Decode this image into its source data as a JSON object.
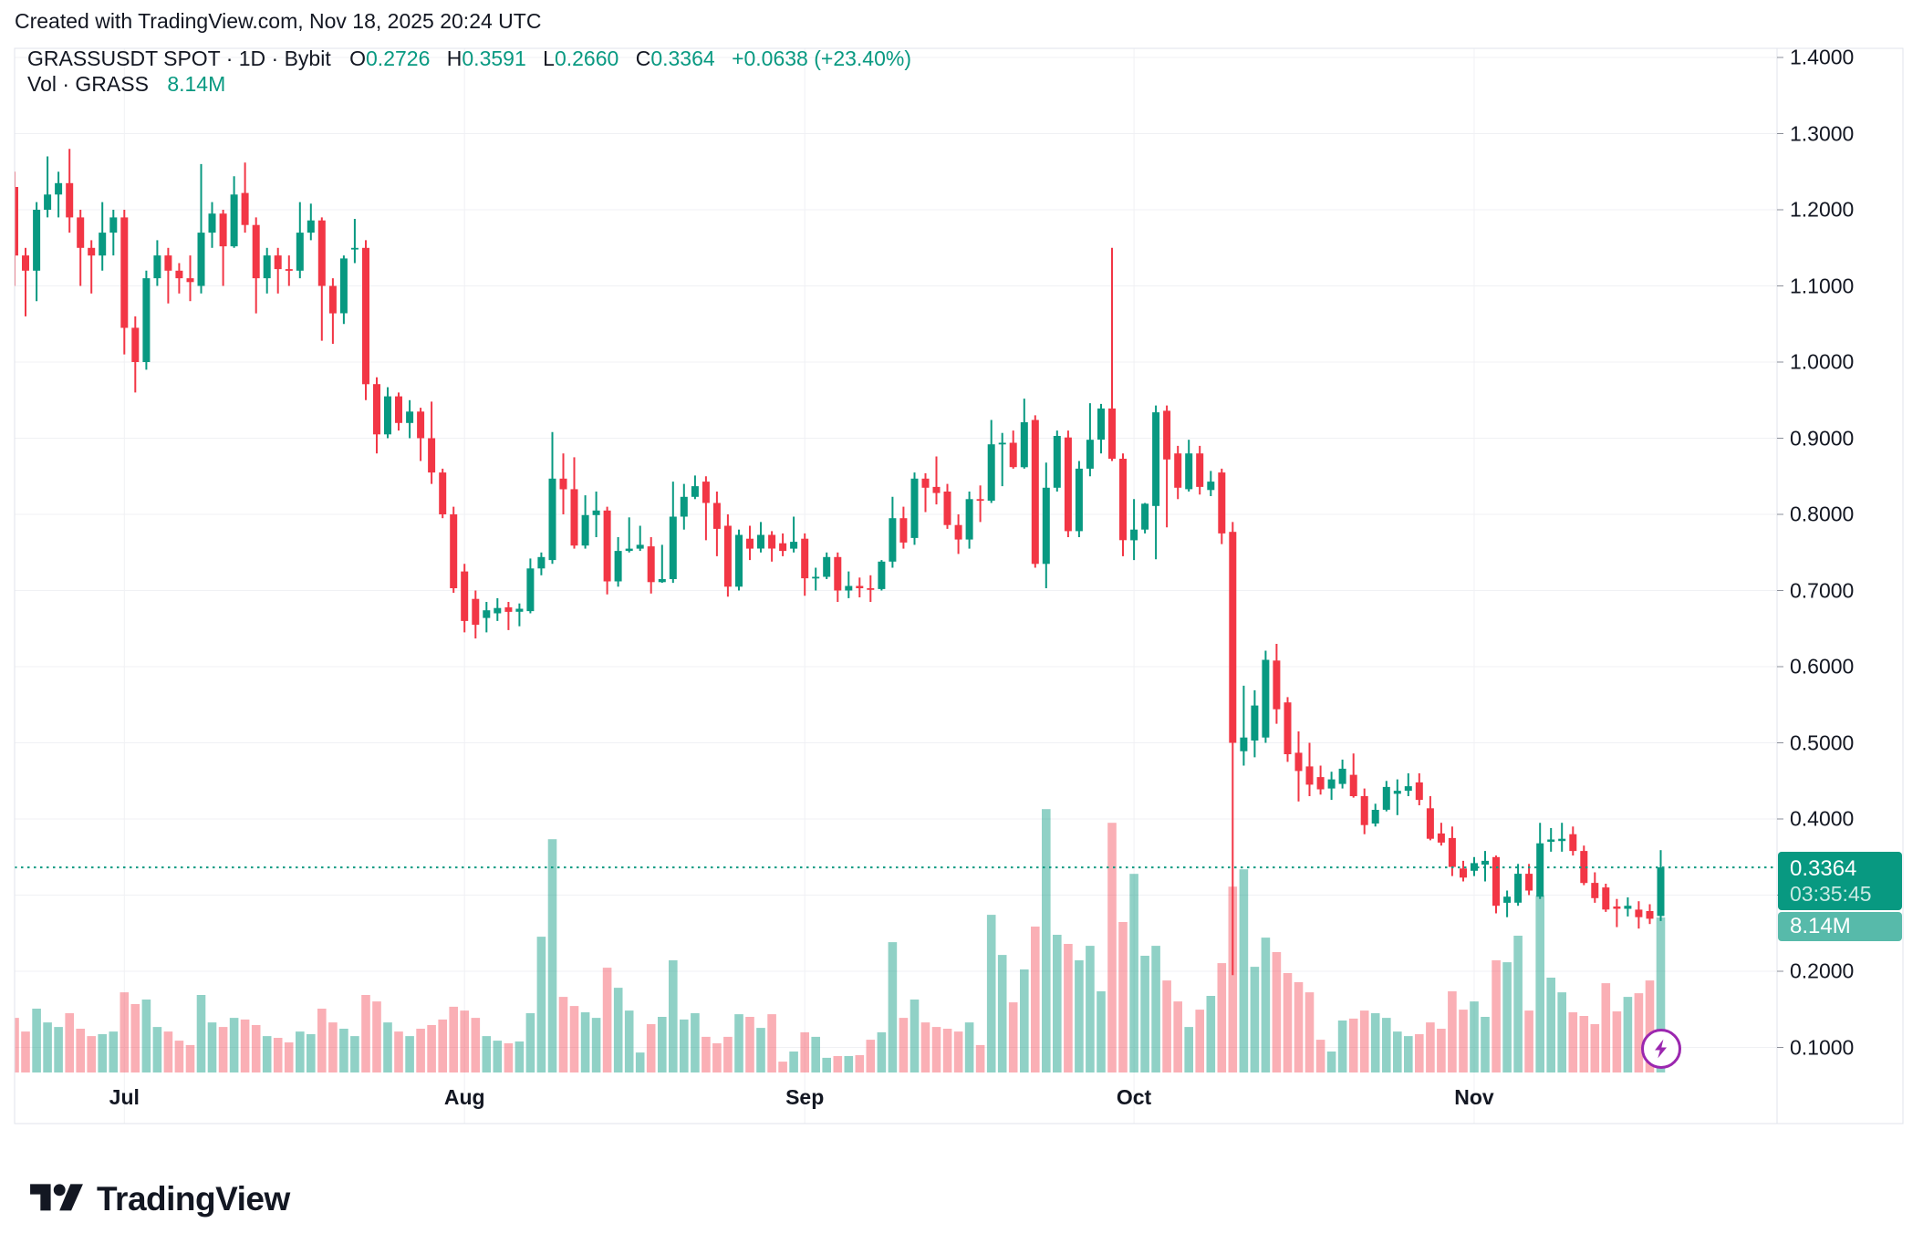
{
  "attribution": "Created with TradingView.com, Nov 18, 2025 20:24 UTC",
  "legend": {
    "symbol_title": "GRASSUSDT SPOT · 1D · Bybit",
    "ohlc": [
      {
        "label": "O",
        "value": "0.2726"
      },
      {
        "label": "H",
        "value": "0.3591"
      },
      {
        "label": "L",
        "value": "0.2660"
      },
      {
        "label": "C",
        "value": "0.3364"
      }
    ],
    "change": "+0.0638 (+23.40%)",
    "volume_label": "Vol · GRASS",
    "volume_value": "8.14M"
  },
  "price_scale": {
    "labels": [
      "1.4000",
      "1.3000",
      "1.2000",
      "1.1000",
      "1.0000",
      "0.9000",
      "0.8000",
      "0.7000",
      "0.6000",
      "0.5000",
      "0.4000",
      "0.3000",
      "0.2000",
      "0.1000"
    ],
    "badge_price": "0.3364",
    "badge_countdown": "03:35:45",
    "badge_volume": "8.14M"
  },
  "footer": {
    "brand": "TradingView"
  },
  "colors": {
    "up": "#089981",
    "down": "#f23645",
    "vol_up": "rgba(8,153,129,0.45)",
    "vol_down": "rgba(242,54,69,0.40)",
    "grid": "#f0f1f4",
    "border": "#e0e3eb",
    "tick": "#8a8e98",
    "price_line": "#089981",
    "marker_ring": "#9b27af"
  },
  "chart_data": {
    "type": "candlestick_with_volume",
    "symbol": "GRASSUSDT",
    "exchange": "Bybit",
    "interval": "1D",
    "start_date": "2025-06-21",
    "end_date": "2025-11-18",
    "ylim": [
      0.05,
      1.45
    ],
    "y_ticks": [
      0.1,
      0.2,
      0.3,
      0.4,
      0.5,
      0.6,
      0.7,
      0.8,
      0.9,
      1.0,
      1.1,
      1.2,
      1.3,
      1.4
    ],
    "price_line_value": 0.3364,
    "last_volume_m": 8.14,
    "month_ticks": [
      {
        "index": 10,
        "label": "Jul"
      },
      {
        "index": 41,
        "label": "Aug"
      },
      {
        "index": 72,
        "label": "Sep"
      },
      {
        "index": 102,
        "label": "Oct"
      },
      {
        "index": 133,
        "label": "Nov"
      }
    ],
    "candles_format": [
      "open",
      "high",
      "low",
      "close",
      "volume_millions"
    ],
    "candles": [
      [
        1.23,
        1.25,
        1.1,
        1.14,
        2.87
      ],
      [
        1.14,
        1.15,
        1.06,
        1.12,
        2.15
      ],
      [
        1.12,
        1.21,
        1.08,
        1.2,
        3.35
      ],
      [
        1.2,
        1.27,
        1.19,
        1.22,
        2.63
      ],
      [
        1.22,
        1.25,
        1.19,
        1.235,
        2.39
      ],
      [
        1.235,
        1.28,
        1.17,
        1.19,
        3.11
      ],
      [
        1.19,
        1.2,
        1.1,
        1.15,
        2.3
      ],
      [
        1.15,
        1.16,
        1.09,
        1.14,
        1.91
      ],
      [
        1.14,
        1.21,
        1.12,
        1.17,
        2.01
      ],
      [
        1.17,
        1.2,
        1.14,
        1.19,
        2.15
      ],
      [
        1.19,
        1.2,
        1.01,
        1.045,
        4.21
      ],
      [
        1.045,
        1.06,
        0.96,
        1.0,
        3.59
      ],
      [
        1.0,
        1.12,
        0.99,
        1.11,
        3.83
      ],
      [
        1.11,
        1.16,
        1.1,
        1.14,
        2.39
      ],
      [
        1.14,
        1.15,
        1.077,
        1.12,
        2.15
      ],
      [
        1.12,
        1.13,
        1.09,
        1.11,
        1.67
      ],
      [
        1.11,
        1.14,
        1.08,
        1.105,
        1.44
      ],
      [
        1.1,
        1.26,
        1.09,
        1.17,
        4.07
      ],
      [
        1.17,
        1.21,
        1.15,
        1.195,
        2.63
      ],
      [
        1.195,
        1.2,
        1.1,
        1.152,
        2.39
      ],
      [
        1.152,
        1.244,
        1.15,
        1.22,
        2.87
      ],
      [
        1.222,
        1.262,
        1.17,
        1.18,
        2.78
      ],
      [
        1.18,
        1.19,
        1.064,
        1.11,
        2.49
      ],
      [
        1.11,
        1.15,
        1.09,
        1.14,
        1.91
      ],
      [
        1.14,
        1.15,
        1.09,
        1.122,
        1.82
      ],
      [
        1.122,
        1.14,
        1.1,
        1.12,
        1.58
      ],
      [
        1.12,
        1.21,
        1.11,
        1.17,
        2.15
      ],
      [
        1.17,
        1.208,
        1.16,
        1.186,
        2.01
      ],
      [
        1.186,
        1.19,
        1.028,
        1.1,
        3.35
      ],
      [
        1.1,
        1.11,
        1.024,
        1.064,
        2.63
      ],
      [
        1.064,
        1.14,
        1.05,
        1.136,
        2.3
      ],
      [
        1.148,
        1.188,
        1.13,
        1.15,
        1.91
      ],
      [
        1.15,
        1.16,
        0.95,
        0.971,
        4.07
      ],
      [
        0.971,
        0.98,
        0.88,
        0.905,
        3.73
      ],
      [
        0.905,
        0.967,
        0.9,
        0.955,
        2.63
      ],
      [
        0.955,
        0.96,
        0.91,
        0.92,
        2.15
      ],
      [
        0.92,
        0.95,
        0.9,
        0.935,
        1.91
      ],
      [
        0.935,
        0.94,
        0.87,
        0.9,
        2.3
      ],
      [
        0.9,
        0.948,
        0.84,
        0.855,
        2.49
      ],
      [
        0.855,
        0.86,
        0.795,
        0.8,
        2.78
      ],
      [
        0.8,
        0.81,
        0.697,
        0.703,
        3.45
      ],
      [
        0.725,
        0.735,
        0.645,
        0.66,
        3.25
      ],
      [
        0.689,
        0.7,
        0.637,
        0.655,
        2.87
      ],
      [
        0.664,
        0.685,
        0.645,
        0.674,
        1.91
      ],
      [
        0.67,
        0.69,
        0.66,
        0.677,
        1.67
      ],
      [
        0.678,
        0.685,
        0.648,
        0.672,
        1.53
      ],
      [
        0.672,
        0.683,
        0.653,
        0.676,
        1.63
      ],
      [
        0.673,
        0.742,
        0.67,
        0.729,
        3.11
      ],
      [
        0.729,
        0.75,
        0.72,
        0.744,
        7.13
      ],
      [
        0.74,
        0.908,
        0.735,
        0.847,
        12.25
      ],
      [
        0.847,
        0.88,
        0.8,
        0.833,
        3.97
      ],
      [
        0.833,
        0.875,
        0.755,
        0.759,
        3.49
      ],
      [
        0.759,
        0.825,
        0.755,
        0.799,
        3.16
      ],
      [
        0.799,
        0.83,
        0.77,
        0.805,
        2.87
      ],
      [
        0.805,
        0.81,
        0.695,
        0.712,
        5.5
      ],
      [
        0.712,
        0.77,
        0.705,
        0.752,
        4.45
      ],
      [
        0.752,
        0.796,
        0.75,
        0.755,
        3.25
      ],
      [
        0.755,
        0.785,
        0.752,
        0.76,
        1.05
      ],
      [
        0.758,
        0.77,
        0.696,
        0.711,
        2.54
      ],
      [
        0.711,
        0.76,
        0.71,
        0.715,
        2.92
      ],
      [
        0.715,
        0.843,
        0.71,
        0.797,
        5.89
      ],
      [
        0.797,
        0.84,
        0.78,
        0.823,
        2.78
      ],
      [
        0.823,
        0.851,
        0.82,
        0.837,
        3.11
      ],
      [
        0.843,
        0.85,
        0.766,
        0.815,
        1.87
      ],
      [
        0.815,
        0.83,
        0.745,
        0.781,
        1.53
      ],
      [
        0.785,
        0.8,
        0.692,
        0.705,
        1.87
      ],
      [
        0.705,
        0.78,
        0.7,
        0.773,
        3.06
      ],
      [
        0.768,
        0.785,
        0.74,
        0.755,
        2.92
      ],
      [
        0.755,
        0.79,
        0.75,
        0.773,
        2.34
      ],
      [
        0.773,
        0.778,
        0.738,
        0.755,
        3.06
      ],
      [
        0.762,
        0.775,
        0.745,
        0.752,
        0.57
      ],
      [
        0.755,
        0.797,
        0.75,
        0.764,
        1.1
      ],
      [
        0.768,
        0.775,
        0.693,
        0.716,
        2.11
      ],
      [
        0.716,
        0.73,
        0.7,
        0.718,
        1.87
      ],
      [
        0.718,
        0.75,
        0.715,
        0.744,
        0.77
      ],
      [
        0.744,
        0.75,
        0.685,
        0.7,
        0.86
      ],
      [
        0.7,
        0.725,
        0.69,
        0.706,
        0.86
      ],
      [
        0.706,
        0.717,
        0.691,
        0.703,
        0.91
      ],
      [
        0.703,
        0.72,
        0.685,
        0.702,
        1.72
      ],
      [
        0.702,
        0.74,
        0.7,
        0.738,
        2.11
      ],
      [
        0.738,
        0.823,
        0.73,
        0.795,
        6.84
      ],
      [
        0.795,
        0.81,
        0.755,
        0.763,
        2.87
      ],
      [
        0.769,
        0.855,
        0.76,
        0.847,
        3.83
      ],
      [
        0.847,
        0.854,
        0.803,
        0.835,
        2.63
      ],
      [
        0.836,
        0.876,
        0.813,
        0.828,
        2.39
      ],
      [
        0.83,
        0.84,
        0.781,
        0.786,
        2.3
      ],
      [
        0.786,
        0.8,
        0.748,
        0.767,
        2.15
      ],
      [
        0.767,
        0.83,
        0.755,
        0.82,
        2.63
      ],
      [
        0.82,
        0.838,
        0.79,
        0.818,
        1.44
      ],
      [
        0.818,
        0.924,
        0.815,
        0.892,
        8.28
      ],
      [
        0.892,
        0.907,
        0.837,
        0.894,
        6.17
      ],
      [
        0.894,
        0.91,
        0.86,
        0.862,
        3.68
      ],
      [
        0.862,
        0.952,
        0.86,
        0.921,
        5.41
      ],
      [
        0.924,
        0.93,
        0.73,
        0.735,
        7.66
      ],
      [
        0.735,
        0.868,
        0.703,
        0.835,
        13.83
      ],
      [
        0.835,
        0.91,
        0.83,
        0.903,
        7.23
      ],
      [
        0.901,
        0.91,
        0.77,
        0.778,
        6.75
      ],
      [
        0.778,
        0.87,
        0.77,
        0.86,
        5.89
      ],
      [
        0.86,
        0.946,
        0.85,
        0.898,
        6.65
      ],
      [
        0.898,
        0.945,
        0.88,
        0.939,
        4.26
      ],
      [
        0.939,
        1.15,
        0.87,
        0.873,
        13.11
      ],
      [
        0.873,
        0.88,
        0.745,
        0.766,
        7.9
      ],
      [
        0.766,
        0.82,
        0.74,
        0.78,
        10.43
      ],
      [
        0.78,
        0.815,
        0.775,
        0.814,
        6.13
      ],
      [
        0.811,
        0.943,
        0.741,
        0.934,
        6.65
      ],
      [
        0.936,
        0.943,
        0.783,
        0.872,
        4.83
      ],
      [
        0.88,
        0.89,
        0.82,
        0.835,
        3.73
      ],
      [
        0.833,
        0.898,
        0.83,
        0.88,
        2.39
      ],
      [
        0.88,
        0.89,
        0.826,
        0.836,
        3.3
      ],
      [
        0.832,
        0.857,
        0.824,
        0.843,
        4.02
      ],
      [
        0.855,
        0.86,
        0.761,
        0.775,
        5.74
      ],
      [
        0.777,
        0.79,
        0.195,
        0.5,
        9.76
      ],
      [
        0.489,
        0.575,
        0.47,
        0.507,
        10.67
      ],
      [
        0.503,
        0.569,
        0.481,
        0.549,
        5.55
      ],
      [
        0.507,
        0.621,
        0.5,
        0.609,
        7.08
      ],
      [
        0.608,
        0.63,
        0.525,
        0.544,
        6.32
      ],
      [
        0.553,
        0.56,
        0.475,
        0.485,
        5.22
      ],
      [
        0.487,
        0.515,
        0.423,
        0.463,
        4.74
      ],
      [
        0.469,
        0.5,
        0.43,
        0.445,
        4.21
      ],
      [
        0.455,
        0.47,
        0.432,
        0.439,
        1.72
      ],
      [
        0.44,
        0.462,
        0.425,
        0.452,
        1.1
      ],
      [
        0.446,
        0.478,
        0.44,
        0.466,
        2.73
      ],
      [
        0.458,
        0.486,
        0.428,
        0.43,
        2.83
      ],
      [
        0.43,
        0.44,
        0.38,
        0.392,
        3.25
      ],
      [
        0.394,
        0.42,
        0.39,
        0.412,
        3.11
      ],
      [
        0.412,
        0.45,
        0.41,
        0.442,
        2.87
      ],
      [
        0.433,
        0.452,
        0.405,
        0.437,
        2.15
      ],
      [
        0.437,
        0.46,
        0.43,
        0.443,
        1.91
      ],
      [
        0.448,
        0.46,
        0.418,
        0.425,
        2.01
      ],
      [
        0.414,
        0.43,
        0.372,
        0.374,
        2.63
      ],
      [
        0.381,
        0.395,
        0.365,
        0.369,
        2.3
      ],
      [
        0.375,
        0.39,
        0.325,
        0.337,
        4.26
      ],
      [
        0.335,
        0.345,
        0.318,
        0.323,
        3.3
      ],
      [
        0.332,
        0.35,
        0.325,
        0.342,
        3.73
      ],
      [
        0.34,
        0.358,
        0.318,
        0.345,
        2.92
      ],
      [
        0.35,
        0.352,
        0.276,
        0.286,
        5.89
      ],
      [
        0.29,
        0.306,
        0.271,
        0.298,
        5.79
      ],
      [
        0.29,
        0.341,
        0.286,
        0.328,
        7.18
      ],
      [
        0.328,
        0.341,
        0.3,
        0.306,
        3.25
      ],
      [
        0.298,
        0.395,
        0.295,
        0.368,
        9.28
      ],
      [
        0.37,
        0.388,
        0.357,
        0.373,
        4.98
      ],
      [
        0.371,
        0.395,
        0.357,
        0.374,
        4.21
      ],
      [
        0.38,
        0.39,
        0.352,
        0.358,
        3.16
      ],
      [
        0.358,
        0.365,
        0.313,
        0.316,
        2.97
      ],
      [
        0.316,
        0.33,
        0.29,
        0.296,
        2.54
      ],
      [
        0.31,
        0.315,
        0.278,
        0.281,
        4.69
      ],
      [
        0.285,
        0.295,
        0.258,
        0.282,
        3.21
      ],
      [
        0.282,
        0.297,
        0.272,
        0.286,
        3.97
      ],
      [
        0.281,
        0.292,
        0.256,
        0.271,
        4.16
      ],
      [
        0.279,
        0.288,
        0.262,
        0.269,
        4.83
      ],
      [
        0.2726,
        0.3591,
        0.266,
        0.3364,
        8.14
      ]
    ]
  }
}
